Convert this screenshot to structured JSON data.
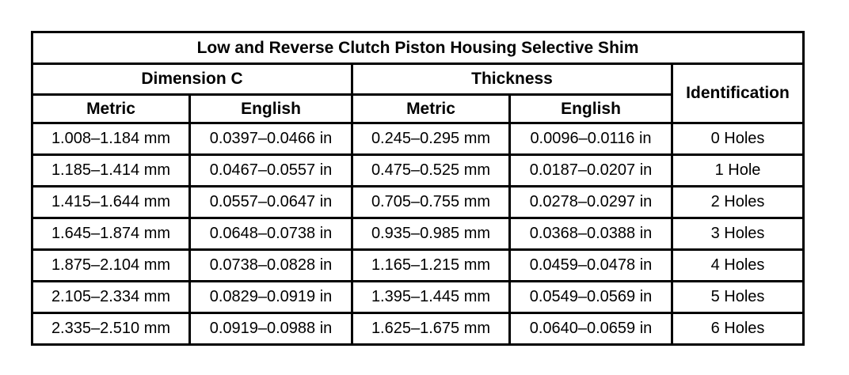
{
  "table": {
    "title": "Low and Reverse Clutch Piston Housing Selective Shim",
    "groups": {
      "dimension_c": "Dimension C",
      "thickness": "Thickness",
      "identification": "Identification"
    },
    "sub_headers": [
      "Metric",
      "English",
      "Metric",
      "English"
    ],
    "rows": [
      [
        "1.008–1.184 mm",
        "0.0397–0.0466 in",
        "0.245–0.295 mm",
        "0.0096–0.0116 in",
        "0 Holes"
      ],
      [
        "1.185–1.414 mm",
        "0.0467–0.0557 in",
        "0.475–0.525 mm",
        "0.0187–0.0207 in",
        "1 Hole"
      ],
      [
        "1.415–1.644 mm",
        "0.0557–0.0647 in",
        "0.705–0.755 mm",
        "0.0278–0.0297 in",
        "2 Holes"
      ],
      [
        "1.645–1.874 mm",
        "0.0648–0.0738 in",
        "0.935–0.985 mm",
        "0.0368–0.0388 in",
        "3 Holes"
      ],
      [
        "1.875–2.104 mm",
        "0.0738–0.0828 in",
        "1.165–1.215 mm",
        "0.0459–0.0478 in",
        "4 Holes"
      ],
      [
        "2.105–2.334 mm",
        "0.0829–0.0919 in",
        "1.395–1.445 mm",
        "0.0549–0.0569 in",
        "5 Holes"
      ],
      [
        "2.335–2.510 mm",
        "0.0919–0.0988 in",
        "1.625–1.675 mm",
        "0.0640–0.0659 in",
        "6 Holes"
      ]
    ],
    "colors": {
      "border": "#000000",
      "background": "#ffffff",
      "text": "#000000"
    }
  }
}
